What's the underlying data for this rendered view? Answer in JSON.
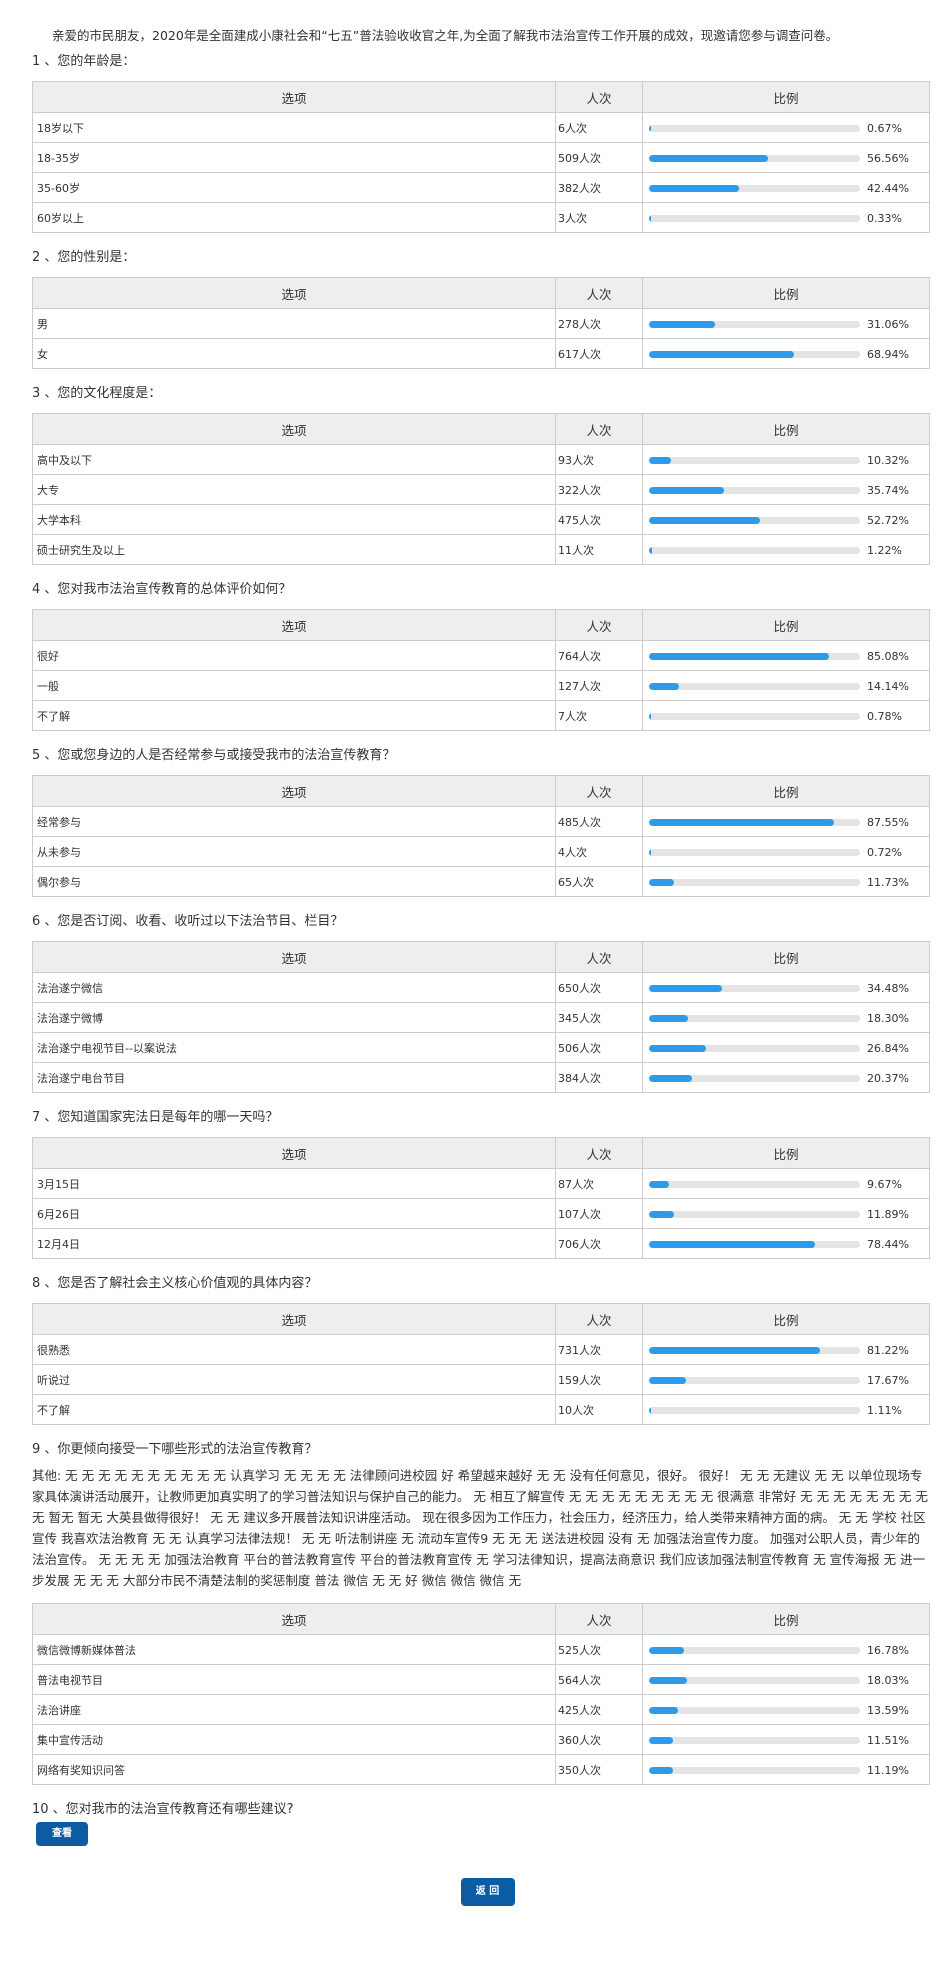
{
  "intro": "亲爱的市民朋友，2020年是全面建成小康社会和“七五”普法验收收官之年,为全面了解我市法治宣传工作开展的成效，现邀请您参与调查问卷。",
  "table_header": {
    "option": "选项",
    "count": "人次",
    "ratio": "比例"
  },
  "questions": [
    {
      "title": "1 、您的年龄是：",
      "other": "",
      "rows": [
        {
          "label": "18岁以下",
          "count": "6人次",
          "pct": "0.67%",
          "value": 0.67
        },
        {
          "label": "18-35岁",
          "count": "509人次",
          "pct": "56.56%",
          "value": 56.56
        },
        {
          "label": "35-60岁",
          "count": "382人次",
          "pct": "42.44%",
          "value": 42.44
        },
        {
          "label": "60岁以上",
          "count": "3人次",
          "pct": "0.33%",
          "value": 0.33
        }
      ]
    },
    {
      "title": "2 、您的性别是：",
      "other": "",
      "rows": [
        {
          "label": "男",
          "count": "278人次",
          "pct": "31.06%",
          "value": 31.06
        },
        {
          "label": "女",
          "count": "617人次",
          "pct": "68.94%",
          "value": 68.94
        }
      ]
    },
    {
      "title": "3 、您的文化程度是：",
      "other": "",
      "rows": [
        {
          "label": "高中及以下",
          "count": "93人次",
          "pct": "10.32%",
          "value": 10.32
        },
        {
          "label": "大专",
          "count": "322人次",
          "pct": "35.74%",
          "value": 35.74
        },
        {
          "label": "大学本科",
          "count": "475人次",
          "pct": "52.72%",
          "value": 52.72
        },
        {
          "label": "硕士研究生及以上",
          "count": "11人次",
          "pct": "1.22%",
          "value": 1.22
        }
      ]
    },
    {
      "title": "4 、您对我市法治宣传教育的总体评价如何？",
      "other": "",
      "rows": [
        {
          "label": "很好",
          "count": "764人次",
          "pct": "85.08%",
          "value": 85.08
        },
        {
          "label": "一般",
          "count": "127人次",
          "pct": "14.14%",
          "value": 14.14
        },
        {
          "label": "不了解",
          "count": "7人次",
          "pct": "0.78%",
          "value": 0.78
        }
      ]
    },
    {
      "title": "5 、您或您身边的人是否经常参与或接受我市的法治宣传教育？",
      "other": "",
      "rows": [
        {
          "label": "经常参与",
          "count": "485人次",
          "pct": "87.55%",
          "value": 87.55
        },
        {
          "label": "从未参与",
          "count": "4人次",
          "pct": "0.72%",
          "value": 0.72
        },
        {
          "label": "偶尔参与",
          "count": "65人次",
          "pct": "11.73%",
          "value": 11.73
        }
      ]
    },
    {
      "title": "6 、您是否订阅、收看、收听过以下法治节目、栏目？",
      "other": "",
      "rows": [
        {
          "label": "法治遂宁微信",
          "count": "650人次",
          "pct": "34.48%",
          "value": 34.48
        },
        {
          "label": "法治遂宁微博",
          "count": "345人次",
          "pct": "18.30%",
          "value": 18.3
        },
        {
          "label": "法治遂宁电视节目--以案说法",
          "count": "506人次",
          "pct": "26.84%",
          "value": 26.84
        },
        {
          "label": "法治遂宁电台节目",
          "count": "384人次",
          "pct": "20.37%",
          "value": 20.37
        }
      ]
    },
    {
      "title": "7 、您知道国家宪法日是每年的哪一天吗？",
      "other": "",
      "rows": [
        {
          "label": "3月15日",
          "count": "87人次",
          "pct": "9.67%",
          "value": 9.67
        },
        {
          "label": "6月26日",
          "count": "107人次",
          "pct": "11.89%",
          "value": 11.89
        },
        {
          "label": "12月4日",
          "count": "706人次",
          "pct": "78.44%",
          "value": 78.44
        }
      ]
    },
    {
      "title": "8 、您是否了解社会主义核心价值观的具体内容？",
      "other": "",
      "rows": [
        {
          "label": "很熟悉",
          "count": "731人次",
          "pct": "81.22%",
          "value": 81.22
        },
        {
          "label": "听说过",
          "count": "159人次",
          "pct": "17.67%",
          "value": 17.67
        },
        {
          "label": "不了解",
          "count": "10人次",
          "pct": "1.11%",
          "value": 1.11
        }
      ]
    },
    {
      "title": "9 、你更倾向接受一下哪些形式的法治宣传教育？",
      "other": "其他: 无 无 无 无 无 无 无 无 无 无 认真学习 无 无 无 无 法律顾问进校园 好 希望越来越好 无 无 没有任何意见，很好。 很好！ 无 无 无建议 无 无 以单位现场专家具体演讲活动展开，让教师更加真实明了的学习普法知识与保护自己的能力。 无 相互了解宣传 无 无 无 无 无 无 无 无 无 很满意 非常好 无 无 无 无 无 无 无 无 无 暂无 暂无 大英县做得很好！ 无 无 建议多开展普法知识讲座活动。 现在很多因为工作压力，社会压力，经济压力，给人类带来精神方面的病。 无 无 学校 社区宣传 我喜欢法治教育 无 无 认真学习法律法规！ 无 无 听法制讲座 无 流动车宣传9 无 无 无 送法进校园 没有 无 加强法治宣传力度。 加强对公职人员，青少年的法治宣传。 无 无 无 无 加强法治教育 平台的普法教育宣传 平台的普法教育宣传 无 学习法律知识，提高法商意识 我们应该加强法制宣传教育 无 宣传海报 无 进一步发展 无 无 无 大部分市民不清楚法制的奖惩制度 普法 微信 无 无 好 微信 微信 微信 无",
      "rows": [
        {
          "label": "微信微博新媒体普法",
          "count": "525人次",
          "pct": "16.78%",
          "value": 16.78
        },
        {
          "label": "普法电视节目",
          "count": "564人次",
          "pct": "18.03%",
          "value": 18.03
        },
        {
          "label": "法治讲座",
          "count": "425人次",
          "pct": "13.59%",
          "value": 13.59
        },
        {
          "label": "集中宣传活动",
          "count": "360人次",
          "pct": "11.51%",
          "value": 11.51
        },
        {
          "label": "网络有奖知识问答",
          "count": "350人次",
          "pct": "11.19%",
          "value": 11.19
        }
      ]
    }
  ],
  "q10": {
    "title": "10 、您对我市的法治宣传教育还有哪些建议?",
    "view_label": "查看"
  },
  "back_label": "返 回",
  "colors": {
    "bar": "#2e9ae8",
    "track": "#e4e4e4",
    "button": "#0c5ca4",
    "header_bg": "#eeeeee",
    "border": "#cccccc"
  }
}
